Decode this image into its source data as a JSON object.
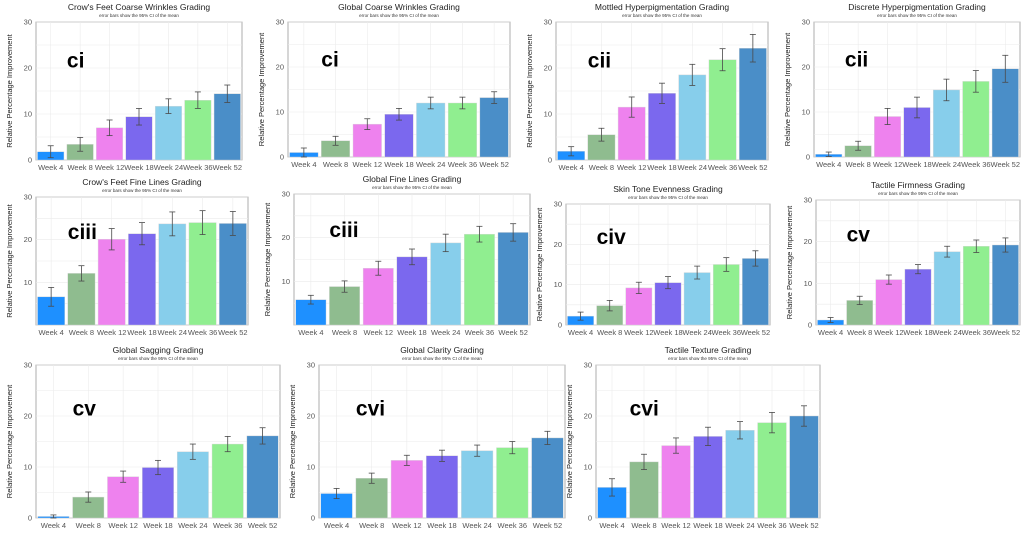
{
  "y_axis_label": "Relative Percentage Improvement",
  "subtitle": "error bars show the 95% CI of the mean",
  "categories": [
    "Week 4",
    "Week 8",
    "Week 12",
    "Week 18",
    "Week 24",
    "Week 36",
    "Week 52"
  ],
  "colors": [
    "#1e90ff",
    "#8fbc8f",
    "#ee82ee",
    "#7b68ee",
    "#87ceeb",
    "#90ee90",
    "#4a8ec8"
  ],
  "chart_data": [
    {
      "type": "bar",
      "title": "Crow's Feet Coarse Wrinkles Grading",
      "label": "ci",
      "ylim": [
        0,
        30
      ],
      "yticks": [
        0,
        10,
        20,
        30
      ],
      "values": [
        1.8,
        3.4,
        7.0,
        9.4,
        11.7,
        13.0,
        14.4
      ],
      "errors": [
        1.3,
        1.5,
        1.7,
        1.8,
        1.6,
        1.8,
        1.9
      ]
    },
    {
      "type": "bar",
      "title": "Global Coarse Wrinkles Grading",
      "label": "ci",
      "ylim": [
        0,
        30
      ],
      "yticks": [
        0,
        10,
        20,
        30
      ],
      "values": [
        1.0,
        3.6,
        7.3,
        9.5,
        12.0,
        12.0,
        13.2
      ],
      "errors": [
        1.0,
        1.0,
        1.2,
        1.3,
        1.3,
        1.3,
        1.3
      ]
    },
    {
      "type": "bar",
      "title": "Mottled Hyperpigmentation Grading",
      "label": "cii",
      "ylim": [
        0,
        30
      ],
      "yticks": [
        0,
        10,
        20,
        30
      ],
      "values": [
        1.9,
        5.5,
        11.5,
        14.5,
        18.5,
        21.8,
        24.3
      ],
      "errors": [
        1.0,
        1.4,
        2.2,
        2.2,
        2.3,
        2.4,
        3.0
      ]
    },
    {
      "type": "bar",
      "title": "Discrete Hyperpigmentation Grading",
      "label": "cii",
      "ylim": [
        0,
        30
      ],
      "yticks": [
        0,
        10,
        20,
        30
      ],
      "values": [
        0.6,
        2.5,
        9.0,
        11.0,
        14.9,
        16.8,
        19.6
      ],
      "errors": [
        0.5,
        1.0,
        1.8,
        2.3,
        2.4,
        2.4,
        3.0
      ]
    },
    {
      "type": "bar",
      "title": "Crow's Feet Fine Lines Grading",
      "label": "ciii",
      "ylim": [
        0,
        30
      ],
      "yticks": [
        10,
        20,
        30
      ],
      "values": [
        6.6,
        12.1,
        20.1,
        21.4,
        23.7,
        24.0,
        23.8
      ],
      "errors": [
        2.2,
        1.8,
        2.5,
        2.6,
        2.8,
        2.8,
        2.8
      ]
    },
    {
      "type": "bar",
      "title": "Global Fine Lines Grading",
      "label": "ciii",
      "ylim": [
        0,
        30
      ],
      "yticks": [
        10,
        20,
        30
      ],
      "values": [
        5.8,
        8.8,
        13.0,
        15.6,
        18.8,
        20.8,
        21.2
      ],
      "errors": [
        1.0,
        1.3,
        1.6,
        1.8,
        2.0,
        1.8,
        2.0
      ]
    },
    {
      "type": "bar",
      "title": "Skin Tone Evenness Grading",
      "label": "civ",
      "ylim": [
        0,
        30
      ],
      "yticks": [
        0,
        10,
        20,
        30
      ],
      "values": [
        2.2,
        4.8,
        9.2,
        10.5,
        13.0,
        15.0,
        16.5
      ],
      "errors": [
        1.0,
        1.3,
        1.4,
        1.5,
        1.6,
        1.7,
        1.9
      ]
    },
    {
      "type": "bar",
      "title": "Tactile Firmness Grading",
      "label": "cv",
      "ylim": [
        0,
        30
      ],
      "yticks": [
        0,
        10,
        20,
        30
      ],
      "values": [
        1.2,
        5.9,
        10.9,
        13.4,
        17.6,
        18.9,
        19.2
      ],
      "errors": [
        0.6,
        1.0,
        1.1,
        1.1,
        1.3,
        1.5,
        1.7
      ]
    },
    {
      "type": "bar",
      "title": "Global Sagging Grading",
      "label": "cv",
      "ylim": [
        0,
        30
      ],
      "yticks": [
        0,
        10,
        20,
        30
      ],
      "values": [
        0.3,
        4.1,
        8.1,
        9.9,
        13.0,
        14.5,
        16.1
      ],
      "errors": [
        0.3,
        1.0,
        1.1,
        1.4,
        1.5,
        1.5,
        1.6
      ]
    },
    {
      "type": "bar",
      "title": "Global Clarity Grading",
      "label": "cvi",
      "ylim": [
        0,
        30
      ],
      "yticks": [
        0,
        10,
        20,
        30
      ],
      "values": [
        4.8,
        7.8,
        11.3,
        12.2,
        13.2,
        13.8,
        15.7
      ],
      "errors": [
        1.0,
        1.0,
        1.0,
        1.1,
        1.1,
        1.2,
        1.3
      ]
    },
    {
      "type": "bar",
      "title": "Tactile Texture Grading",
      "label": "cvi",
      "ylim": [
        0,
        30
      ],
      "yticks": [
        0,
        10,
        20,
        30
      ],
      "values": [
        6.0,
        11.0,
        14.2,
        16.0,
        17.2,
        18.7,
        20.0
      ],
      "errors": [
        1.7,
        1.5,
        1.5,
        1.8,
        1.7,
        2.0,
        2.0
      ]
    }
  ]
}
